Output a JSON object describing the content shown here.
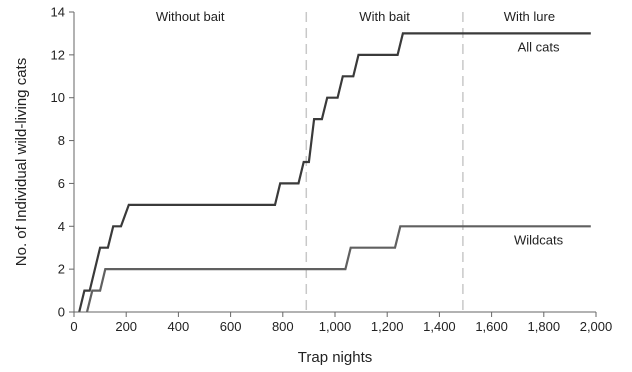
{
  "chart_data": {
    "type": "line",
    "title": "",
    "xlabel": "Trap nights",
    "ylabel": "No. of Individual wild-living cats",
    "xlim": [
      0,
      2000
    ],
    "ylim": [
      0,
      14
    ],
    "x_ticks": [
      0,
      200,
      400,
      600,
      800,
      1000,
      1200,
      1400,
      1600,
      1800,
      2000
    ],
    "x_tick_labels": [
      "0",
      "200",
      "400",
      "600",
      "800",
      "1,000",
      "1,200",
      "1,400",
      "1,600",
      "1,800",
      "2,000"
    ],
    "y_ticks": [
      0,
      2,
      4,
      6,
      8,
      10,
      12,
      14
    ],
    "y_tick_labels": [
      "0",
      "2",
      "4",
      "6",
      "8",
      "10",
      "12",
      "14"
    ],
    "grid": false,
    "regions": [
      {
        "label": "Without bait",
        "x_start": 0,
        "x_end": 890
      },
      {
        "label": "With bait",
        "x_start": 890,
        "x_end": 1490
      },
      {
        "label": "With lure",
        "x_start": 1490,
        "x_end": 2000
      }
    ],
    "dividers": [
      890,
      1490
    ],
    "series": [
      {
        "name": "All cats",
        "color": "#3a3a3a",
        "points": [
          [
            20,
            0
          ],
          [
            40,
            1
          ],
          [
            60,
            1
          ],
          [
            80,
            2
          ],
          [
            100,
            3
          ],
          [
            130,
            3
          ],
          [
            150,
            4
          ],
          [
            180,
            4
          ],
          [
            210,
            5
          ],
          [
            770,
            5
          ],
          [
            790,
            6
          ],
          [
            860,
            6
          ],
          [
            880,
            7
          ],
          [
            900,
            7
          ],
          [
            920,
            9
          ],
          [
            950,
            9
          ],
          [
            970,
            10
          ],
          [
            1010,
            10
          ],
          [
            1030,
            11
          ],
          [
            1070,
            11
          ],
          [
            1090,
            12
          ],
          [
            1240,
            12
          ],
          [
            1260,
            13
          ],
          [
            1980,
            13
          ]
        ]
      },
      {
        "name": "Wildcats",
        "color": "#606060",
        "points": [
          [
            50,
            0
          ],
          [
            70,
            1
          ],
          [
            100,
            1
          ],
          [
            120,
            2
          ],
          [
            1040,
            2
          ],
          [
            1060,
            3
          ],
          [
            1230,
            3
          ],
          [
            1250,
            4
          ],
          [
            1980,
            4
          ]
        ]
      }
    ]
  }
}
